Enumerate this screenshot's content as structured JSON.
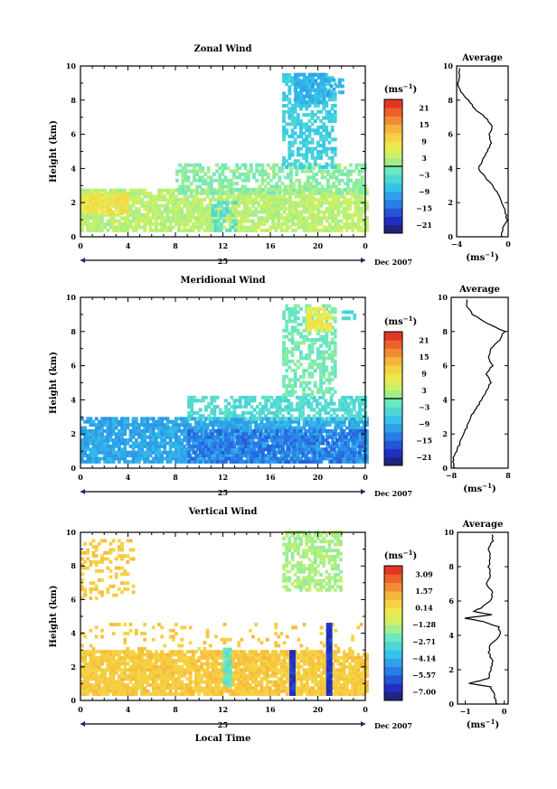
{
  "chart_data": [
    {
      "type": "heatmap",
      "title": "Zonal Wind",
      "ylabel": "Height (km)",
      "yticks": [
        "0",
        "2",
        "4",
        "6",
        "8",
        "10"
      ],
      "xticks": [
        "0",
        "4",
        "8",
        "12",
        "16",
        "20",
        "0"
      ],
      "day_label": "25",
      "date_label": "Dec 2007",
      "xlim": [
        0,
        24
      ],
      "ylim": [
        0,
        10
      ],
      "colorbar": {
        "unit_label": "(ms",
        "unit_exp": "−1",
        "ticks": [
          "21",
          "15",
          "9",
          "3",
          "−3",
          "−9",
          "−15",
          "−21"
        ],
        "range": [
          -24,
          24
        ],
        "zero_line": true
      },
      "regions": [
        {
          "x": [
            0,
            24
          ],
          "y": [
            0.3,
            2.8
          ],
          "value": 3,
          "density": 0.82
        },
        {
          "x": [
            0,
            4
          ],
          "y": [
            1.3,
            2.5
          ],
          "value": 8,
          "density": 0.9
        },
        {
          "x": [
            8,
            24
          ],
          "y": [
            2.5,
            4.2
          ],
          "value": 0,
          "density": 0.55
        },
        {
          "x": [
            11,
            13
          ],
          "y": [
            0.3,
            2
          ],
          "value": -3,
          "density": 0.6
        },
        {
          "x": [
            17,
            21.5
          ],
          "y": [
            4,
            9.5
          ],
          "value": -6,
          "density": 0.55
        },
        {
          "x": [
            18,
            20.5
          ],
          "y": [
            7.8,
            9.5
          ],
          "value": -9,
          "density": 0.85
        },
        {
          "x": [
            20.5,
            22
          ],
          "y": [
            8.2,
            9.2
          ],
          "value": -9,
          "density": 0.5
        }
      ],
      "profile": {
        "title": "Average",
        "xticks": [
          "−4",
          "0"
        ],
        "xlim": [
          -4,
          0
        ],
        "xlabel": "(ms",
        "xlabel_exp": "−1",
        "height": [
          0,
          0.5,
          1,
          1.5,
          2,
          2.5,
          3,
          3.5,
          4,
          4.5,
          5,
          5.5,
          6,
          6.5,
          7,
          7.5,
          8,
          8.5,
          9,
          9.5
        ],
        "values": [
          -0.5,
          -0.4,
          -0.1,
          -0.2,
          -0.5,
          -0.8,
          -1.2,
          -1.8,
          -2.3,
          -2.0,
          -1.6,
          -1.3,
          -1.5,
          -1.2,
          -1.8,
          -2.6,
          -3.1,
          -3.7,
          -3.9,
          -3.8
        ]
      }
    },
    {
      "type": "heatmap",
      "title": "Meridional Wind",
      "ylabel": "Height (km)",
      "yticks": [
        "0",
        "2",
        "4",
        "6",
        "8",
        "10"
      ],
      "xticks": [
        "0",
        "4",
        "8",
        "12",
        "16",
        "20",
        "0"
      ],
      "day_label": "25",
      "date_label": "Dec 2007",
      "xlim": [
        0,
        24
      ],
      "ylim": [
        0,
        10
      ],
      "colorbar": {
        "unit_label": "(ms",
        "unit_exp": "−1",
        "ticks": [
          "21",
          "15",
          "9",
          "3",
          "−3",
          "−9",
          "−15",
          "−21"
        ],
        "range": [
          -24,
          24
        ],
        "zero_line": true
      },
      "regions": [
        {
          "x": [
            0,
            24
          ],
          "y": [
            0.3,
            3
          ],
          "value": -10,
          "density": 0.85
        },
        {
          "x": [
            9,
            24
          ],
          "y": [
            0.3,
            2.2
          ],
          "value": -14,
          "density": 0.6
        },
        {
          "x": [
            9,
            24
          ],
          "y": [
            2.8,
            4.2
          ],
          "value": -4,
          "density": 0.6
        },
        {
          "x": [
            17,
            21.5
          ],
          "y": [
            4.2,
            9.5
          ],
          "value": -1,
          "density": 0.55
        },
        {
          "x": [
            19,
            21
          ],
          "y": [
            8,
            9.3
          ],
          "value": 7,
          "density": 0.8
        },
        {
          "x": [
            22,
            23
          ],
          "y": [
            8.7,
            9.2
          ],
          "value": -5,
          "density": 0.6
        }
      ],
      "profile": {
        "title": "Average",
        "xticks": [
          "−8",
          "8"
        ],
        "xlim": [
          -8,
          8
        ],
        "xlabel": "(ms",
        "xlabel_exp": "−1",
        "height": [
          0,
          0.5,
          1,
          1.5,
          2,
          2.5,
          3,
          3.5,
          4,
          4.5,
          5,
          5.5,
          6,
          6.5,
          7,
          7.5,
          8,
          8.5,
          9,
          9.5
        ],
        "values": [
          -7.0,
          -7.5,
          -6.5,
          -5.5,
          -4.5,
          -3.5,
          -2.5,
          -1.0,
          0.5,
          2.0,
          3.0,
          2.0,
          3.5,
          2.5,
          3.0,
          5.5,
          7.0,
          2.0,
          -2.0,
          -3.5
        ]
      }
    },
    {
      "type": "heatmap",
      "title": "Vertical Wind",
      "ylabel": "Height (km)",
      "xlabel": "Local Time",
      "yticks": [
        "0",
        "2",
        "4",
        "6",
        "8",
        "10"
      ],
      "xticks": [
        "0",
        "4",
        "8",
        "12",
        "16",
        "20",
        "0"
      ],
      "day_label": "25",
      "date_label": "Dec 2007",
      "xlim": [
        0,
        24
      ],
      "ylim": [
        0,
        10
      ],
      "colorbar": {
        "unit_label": "(ms",
        "unit_exp": "−1",
        "ticks": [
          "3.09",
          "1.57",
          "0.14",
          "−1.28",
          "−2.71",
          "−4.14",
          "−5.57",
          "−7.00"
        ],
        "range": [
          -7.71,
          3.8
        ],
        "zero_line": false
      },
      "regions": [
        {
          "x": [
            0,
            24
          ],
          "y": [
            0.3,
            3
          ],
          "value": 0.8,
          "density": 0.88
        },
        {
          "x": [
            0,
            24
          ],
          "y": [
            3,
            4.6
          ],
          "value": 0.8,
          "density": 0.12
        },
        {
          "x": [
            0,
            4.5
          ],
          "y": [
            6,
            9.5
          ],
          "value": 0.8,
          "density": 0.3
        },
        {
          "x": [
            17,
            22
          ],
          "y": [
            6.5,
            10
          ],
          "value": -1.5,
          "density": 0.6
        },
        {
          "x": [
            12,
            12.5
          ],
          "y": [
            0.8,
            3
          ],
          "value": -2.5,
          "density": 0.9
        },
        {
          "x": [
            17.6,
            18
          ],
          "y": [
            0.3,
            3
          ],
          "value": -6.5,
          "density": 1.0
        },
        {
          "x": [
            20.7,
            21.1
          ],
          "y": [
            0.3,
            4.5
          ],
          "value": -6.5,
          "density": 1.0
        }
      ],
      "profile": {
        "title": "Average",
        "xticks": [
          "−1",
          "0"
        ],
        "xlim": [
          -1.2,
          0.1
        ],
        "xlabel": "(ms",
        "xlabel_exp": "−1",
        "height": [
          0,
          0.5,
          1,
          1.2,
          1.5,
          2,
          2.5,
          3,
          3.5,
          4,
          4.5,
          4.8,
          5,
          5.2,
          5.4,
          5.6,
          6,
          6.5,
          7,
          7.5,
          8,
          8.5,
          9,
          9.5
        ],
        "values": [
          -0.2,
          -0.25,
          -0.35,
          -0.9,
          -0.4,
          -0.35,
          -0.3,
          -0.4,
          -0.35,
          -0.1,
          -0.15,
          -0.55,
          -1.0,
          -0.3,
          -0.8,
          -0.6,
          -0.35,
          -0.3,
          -0.45,
          -0.35,
          -0.4,
          -0.35,
          -0.4,
          -0.3
        ]
      }
    }
  ]
}
